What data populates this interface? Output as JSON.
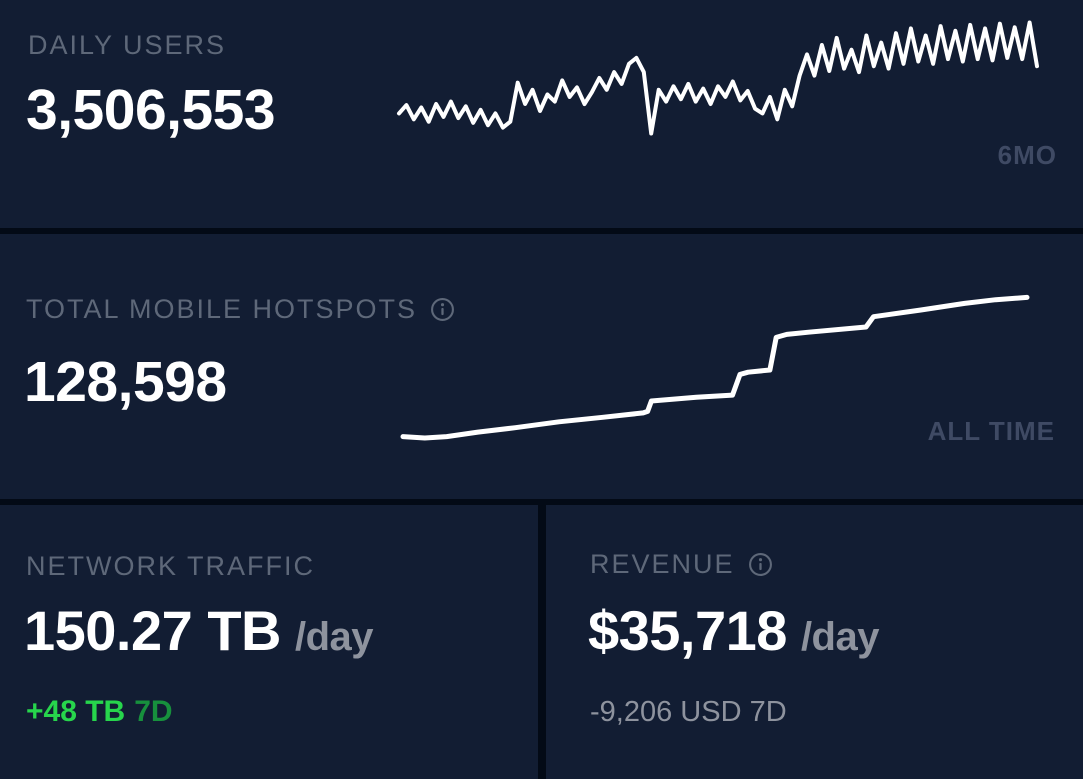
{
  "theme": {
    "card_bg": "#121d33",
    "page_gap": "#030a16",
    "label_color": "#5e6879",
    "period_color": "#3f4a64",
    "value_color": "#ffffff",
    "muted_color": "#8e939e",
    "positive_green": "#27d54c",
    "positive_green_dark": "#17903d",
    "line_color": "#ffffff"
  },
  "cards": {
    "daily_users": {
      "label": "DAILY USERS",
      "value": "3,506,553",
      "period": "6MO"
    },
    "hotspots": {
      "label": "TOTAL MOBILE HOTSPOTS",
      "value": "128,598",
      "period": "ALL TIME",
      "info_icon": "info-icon"
    },
    "network_traffic": {
      "label": "NETWORK TRAFFIC",
      "value": "150.27 TB",
      "unit_suffix": "/day",
      "delta": "+48 TB",
      "delta_window": "7D"
    },
    "revenue": {
      "label": "REVENUE",
      "value": "$35,718",
      "unit_suffix": "/day",
      "delta": "-9,206 USD 7D",
      "info_icon": "info-icon"
    }
  },
  "chart_data": [
    {
      "type": "line",
      "title": "Daily Users trend",
      "period": "6MO",
      "legend": "none",
      "grid": false,
      "axes_shown": false,
      "y_scale": "normalized 0-100 (no axis labels visible in UI)",
      "color": "#ffffff",
      "stroke_width": 4,
      "values": [
        20,
        27,
        15,
        25,
        13,
        28,
        17,
        30,
        16,
        26,
        12,
        23,
        10,
        20,
        8,
        13,
        46,
        28,
        40,
        22,
        36,
        30,
        48,
        34,
        42,
        28,
        38,
        50,
        40,
        55,
        45,
        62,
        67,
        55,
        3,
        40,
        30,
        43,
        32,
        45,
        30,
        41,
        28,
        43,
        34,
        47,
        31,
        39,
        24,
        20,
        34,
        15,
        40,
        26,
        52,
        70,
        52,
        78,
        56,
        84,
        58,
        74,
        55,
        86,
        60,
        80,
        58,
        88,
        62,
        92,
        64,
        86,
        62,
        94,
        66,
        90,
        64,
        95,
        66,
        92,
        65,
        96,
        67,
        93,
        66,
        97,
        60
      ]
    },
    {
      "type": "line",
      "title": "Total Mobile Hotspots cumulative growth",
      "period": "ALL TIME",
      "legend": "none",
      "grid": false,
      "axes_shown": false,
      "y_scale": "normalized 0-100 (no axis labels visible in UI)",
      "color": "#ffffff",
      "stroke_width": 5,
      "points": [
        [
          0,
          3
        ],
        [
          0.035,
          2
        ],
        [
          0.07,
          3
        ],
        [
          0.12,
          6
        ],
        [
          0.18,
          9
        ],
        [
          0.25,
          13
        ],
        [
          0.32,
          16
        ],
        [
          0.385,
          19
        ],
        [
          0.392,
          20
        ],
        [
          0.398,
          27
        ],
        [
          0.47,
          29.5
        ],
        [
          0.528,
          31
        ],
        [
          0.54,
          45
        ],
        [
          0.553,
          46.5
        ],
        [
          0.588,
          48
        ],
        [
          0.598,
          70
        ],
        [
          0.615,
          72
        ],
        [
          0.65,
          73.5
        ],
        [
          0.742,
          77
        ],
        [
          0.754,
          84
        ],
        [
          0.83,
          88.5
        ],
        [
          0.9,
          93
        ],
        [
          0.95,
          95.5
        ],
        [
          1,
          97
        ]
      ]
    }
  ]
}
